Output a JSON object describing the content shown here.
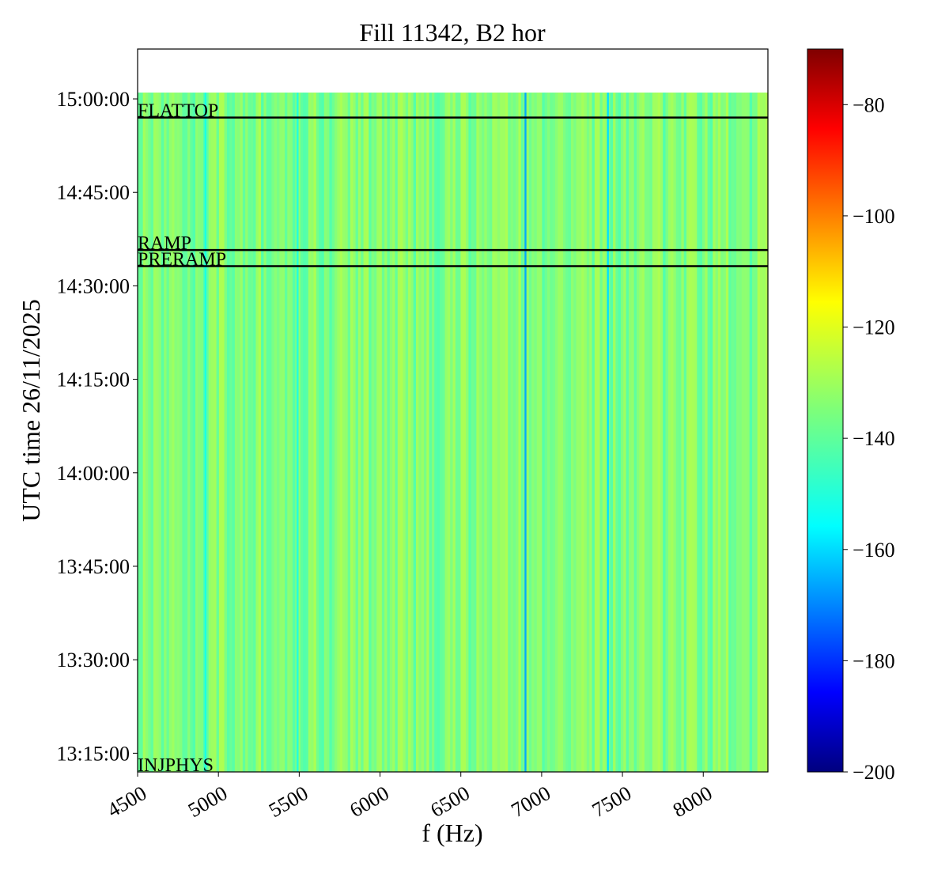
{
  "chart_data": {
    "type": "heatmap",
    "title": "Fill 11342, B2 hor",
    "xlabel": "f (Hz)",
    "ylabel": "UTC time 26/11/2025",
    "xlim": [
      4500,
      8400
    ],
    "ylim": [
      "13:12:00",
      "15:08:00"
    ],
    "data_time_range": [
      "13:12:00",
      "15:01:00"
    ],
    "x_ticks": [
      4500,
      5000,
      5500,
      6000,
      6500,
      7000,
      7500,
      8000
    ],
    "x_tick_labels": [
      "4500",
      "5000",
      "5500",
      "6000",
      "6500",
      "7000",
      "7500",
      "8000"
    ],
    "y_ticks": [
      "13:15:00",
      "13:30:00",
      "13:45:00",
      "14:00:00",
      "14:15:00",
      "14:30:00",
      "14:45:00",
      "15:00:00"
    ],
    "y_tick_labels": [
      "13:15:00",
      "13:30:00",
      "13:45:00",
      "14:00:00",
      "14:15:00",
      "14:30:00",
      "14:45:00",
      "15:00:00"
    ],
    "colorbar": {
      "colormap": "jet",
      "range": [
        -200,
        -70
      ],
      "ticks": [
        -80,
        -100,
        -120,
        -140,
        -160,
        -180,
        -200
      ],
      "tick_labels": [
        "−80",
        "−100",
        "−120",
        "−140",
        "−160",
        "−180",
        "−200"
      ]
    },
    "background_level_approx": -135,
    "markers": [
      {
        "label": "FLATTOP",
        "time": "14:57:00"
      },
      {
        "label": "RAMP",
        "time": "14:35:45"
      },
      {
        "label": "PRERAMP",
        "time": "14:33:10"
      },
      {
        "label": "INJPHYS",
        "time": "13:12:00"
      }
    ],
    "notable_lines": [
      {
        "f": 4920,
        "level": -148
      },
      {
        "f": 5490,
        "level": -147
      },
      {
        "f": 6900,
        "level": -162
      },
      {
        "f": 7410,
        "level": -155
      }
    ]
  },
  "colors": {
    "line_marker": "#000000"
  }
}
